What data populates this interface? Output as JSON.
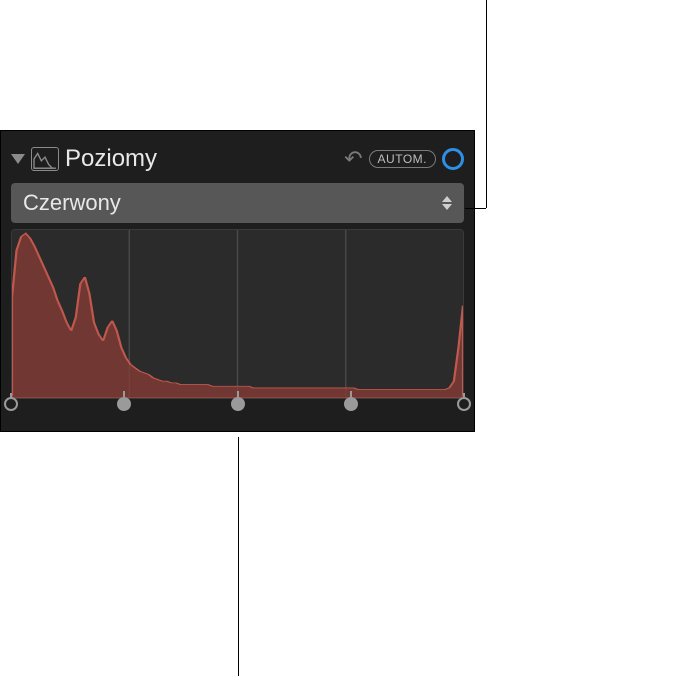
{
  "panel": {
    "title": "Poziomy",
    "auto_label": "AUTOM.",
    "accent_color": "#2e8fe6"
  },
  "channel_dropdown": {
    "selected": "Czerwony"
  },
  "histogram": {
    "type": "area",
    "fill_color": "#8a3c36",
    "stroke_color": "#c1584e",
    "background_color": "#2b2b2b",
    "grid_color": "#4a4a4a",
    "xlim": [
      0,
      255
    ],
    "ylim": [
      0,
      100
    ],
    "grid_x_positions": [
      26,
      50,
      74
    ],
    "values": [
      60,
      88,
      96,
      98,
      95,
      90,
      84,
      78,
      72,
      66,
      58,
      52,
      45,
      40,
      48,
      68,
      72,
      62,
      45,
      38,
      34,
      42,
      46,
      40,
      30,
      24,
      20,
      18,
      16,
      15,
      14,
      12,
      11,
      10,
      10,
      9,
      9,
      8,
      8,
      8,
      8,
      8,
      8,
      8,
      7,
      7,
      7,
      7,
      7,
      7,
      7,
      7,
      7,
      6,
      6,
      6,
      6,
      6,
      6,
      6,
      6,
      6,
      6,
      6,
      6,
      6,
      6,
      6,
      6,
      6,
      6,
      6,
      6,
      6,
      6,
      6,
      5,
      5,
      5,
      5,
      5,
      5,
      5,
      5,
      5,
      5,
      5,
      5,
      5,
      5,
      5,
      5,
      5,
      5,
      5,
      5,
      6,
      10,
      30,
      55
    ],
    "handle_positions_pct": [
      0,
      25,
      50,
      75,
      100
    ]
  },
  "callouts": {
    "dropdown_line": true,
    "midtone_line": true
  }
}
